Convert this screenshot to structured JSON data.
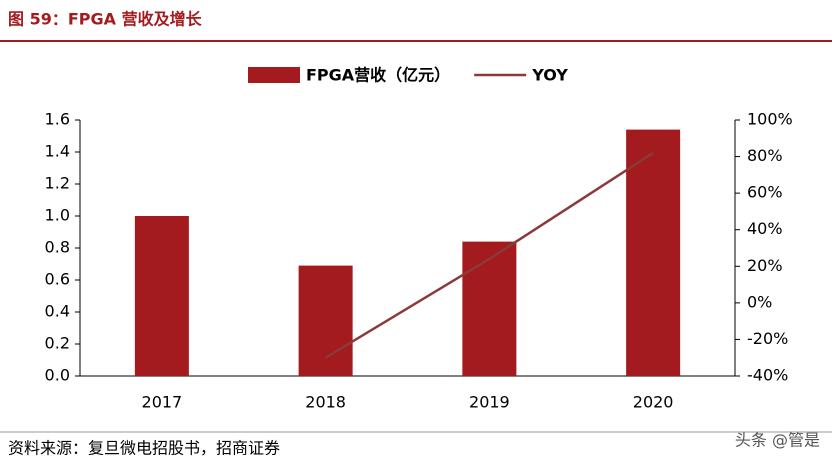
{
  "chart_data": {
    "type": "bar",
    "title": "图 59：FPGA 营收及增长",
    "categories": [
      "2017",
      "2018",
      "2019",
      "2020"
    ],
    "series": [
      {
        "name": "FPGA营收（亿元）",
        "type": "bar",
        "color": "#a31b1e",
        "values": [
          1.0,
          0.69,
          0.84,
          1.54
        ]
      },
      {
        "name": "YOY",
        "type": "line",
        "axis": "y2",
        "color": "#8b3a3a",
        "values": [
          null,
          -30,
          24,
          82
        ]
      }
    ],
    "ylim": [
      0,
      1.6
    ],
    "yticks": [
      {
        "value": 0,
        "label": "0.0"
      },
      0.2,
      0.4,
      0.6,
      0.8,
      {
        "value": 1,
        "label": "1.0"
      },
      1.2,
      1.4,
      1.6
    ],
    "y2lim": [
      -40,
      100
    ],
    "y2ticks": [
      {
        "value": -40,
        "label": "-40%"
      },
      {
        "value": -20,
        "label": "-20%"
      },
      {
        "value": 0,
        "label": "0%"
      },
      {
        "value": 20,
        "label": "20%"
      },
      {
        "value": 40,
        "label": "40%"
      },
      {
        "value": 60,
        "label": "60%"
      },
      {
        "value": 80,
        "label": "80%"
      },
      {
        "value": 100,
        "label": "100%"
      }
    ],
    "legend": "top",
    "source": "资料来源：复旦微电招股书，招商证券",
    "watermark": "头条 @管是"
  }
}
